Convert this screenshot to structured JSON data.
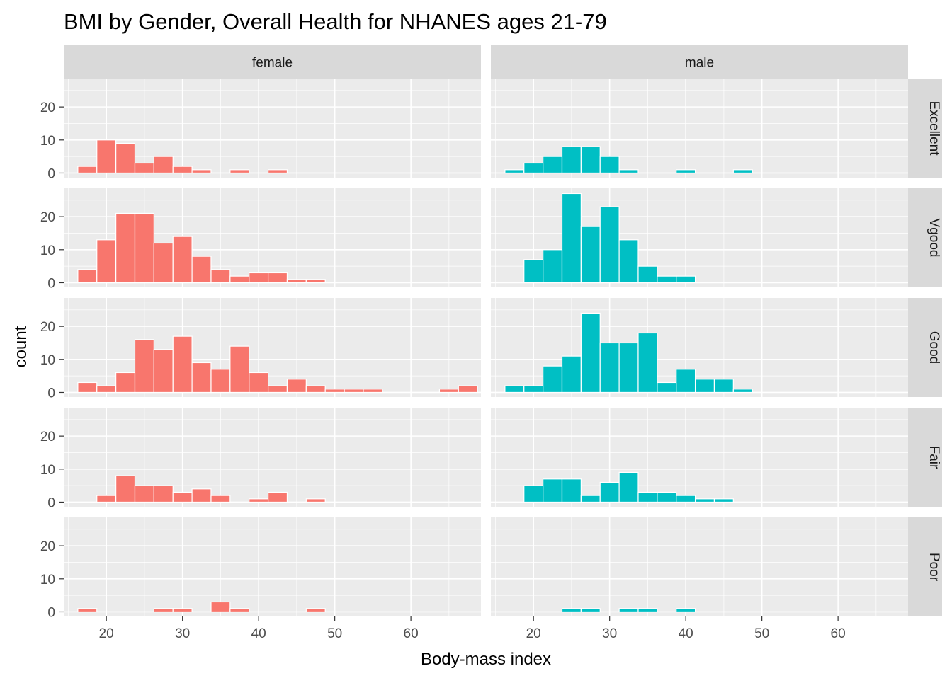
{
  "chart_data": {
    "type": "bar",
    "subtype": "faceted-histogram",
    "title": "BMI by Gender, Overall Health for NHANES ages 21-79",
    "xlabel": "Body-mass index",
    "ylabel": "count",
    "xlim": [
      14.4,
      69.2
    ],
    "ylim": [
      -1.4,
      28.6
    ],
    "x_ticks": [
      20,
      30,
      40,
      50,
      60
    ],
    "y_ticks": [
      0,
      10,
      20
    ],
    "bin_width": 2.5,
    "bin_starts": [
      16.25,
      18.75,
      21.25,
      23.75,
      26.25,
      28.75,
      31.25,
      33.75,
      36.25,
      38.75,
      41.25,
      43.75,
      46.25,
      48.75,
      51.25,
      53.75,
      56.25,
      58.75,
      61.25,
      63.75,
      66.25
    ],
    "columns": [
      "female",
      "male"
    ],
    "rows": [
      "Excellent",
      "Vgood",
      "Good",
      "Fair",
      "Poor"
    ],
    "colors": {
      "female": "#F8766D",
      "male": "#00BFC4",
      "panel": "#EBEBEB",
      "strip": "#D9D9D9",
      "grid": "#FFFFFF",
      "bar_outline": "#FFFFFF"
    },
    "grid": true,
    "panels": {
      "female": {
        "Excellent": [
          2,
          10,
          9,
          3,
          5,
          2,
          1,
          0,
          1,
          0,
          1,
          0,
          0,
          0,
          0,
          0,
          0,
          0,
          0,
          0,
          0
        ],
        "Vgood": [
          4,
          13,
          21,
          21,
          12,
          14,
          8,
          4,
          2,
          3,
          3,
          1,
          1,
          0,
          0,
          0,
          0,
          0,
          0,
          0,
          0
        ],
        "Good": [
          3,
          2,
          6,
          16,
          13,
          17,
          9,
          7,
          14,
          6,
          2,
          4,
          2,
          1,
          1,
          1,
          0,
          0,
          0,
          1,
          2
        ],
        "Fair": [
          0,
          2,
          8,
          5,
          5,
          3,
          4,
          2,
          0,
          1,
          3,
          0,
          1,
          0,
          0,
          0,
          0,
          0,
          0,
          0,
          0
        ],
        "Poor": [
          1,
          0,
          0,
          0,
          1,
          1,
          0,
          3,
          1,
          0,
          0,
          0,
          1,
          0,
          0,
          0,
          0,
          0,
          0,
          0,
          0
        ]
      },
      "male": {
        "Excellent": [
          1,
          3,
          5,
          8,
          8,
          5,
          1,
          0,
          0,
          1,
          0,
          0,
          1,
          0,
          0,
          0,
          0,
          0,
          0,
          0,
          0
        ],
        "Vgood": [
          0,
          7,
          10,
          27,
          17,
          23,
          13,
          5,
          2,
          2,
          0,
          0,
          0,
          0,
          0,
          0,
          0,
          0,
          0,
          0,
          0
        ],
        "Good": [
          2,
          2,
          8,
          11,
          24,
          15,
          15,
          18,
          3,
          7,
          4,
          4,
          1,
          0,
          0,
          0,
          0,
          0,
          0,
          0,
          0
        ],
        "Fair": [
          0,
          5,
          7,
          7,
          2,
          6,
          9,
          3,
          3,
          2,
          1,
          1,
          0,
          0,
          0,
          0,
          0,
          0,
          0,
          0,
          0
        ],
        "Poor": [
          0,
          0,
          0,
          1,
          1,
          0,
          1,
          1,
          0,
          1,
          0,
          0,
          0,
          0,
          0,
          0,
          0,
          0,
          0,
          0,
          0
        ]
      }
    }
  }
}
